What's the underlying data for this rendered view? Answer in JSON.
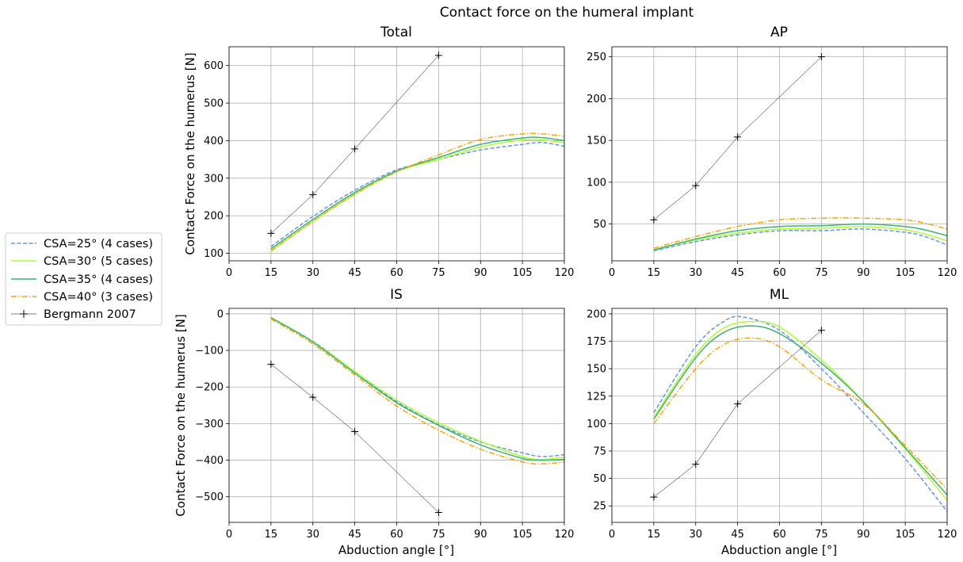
{
  "figure": {
    "suptitle": "Contact force on the humeral implant"
  },
  "legend": {
    "placement": "center-left",
    "entries": [
      {
        "label": "CSA=25° (4 cases)",
        "color": "#6495ED",
        "style": "dashed"
      },
      {
        "label": "CSA=30° (5 cases)",
        "color": "#ADFF2F",
        "style": "solid"
      },
      {
        "label": "CSA=35° (4 cases)",
        "color": "#3CB371",
        "style": "solid"
      },
      {
        "label": "CSA=40° (3 cases)",
        "color": "#FFA500",
        "style": "dashdot"
      },
      {
        "label": "Bergmann 2007",
        "color": "#000000",
        "style": "thin-plus-marker"
      }
    ]
  },
  "chart_data": [
    {
      "type": "line",
      "title": "Total",
      "xlabel": "",
      "ylabel": "Contact Force on the humerus [N]",
      "xlim": [
        0,
        120
      ],
      "ylim": [
        80,
        650
      ],
      "xticks": [
        0,
        15,
        30,
        45,
        60,
        75,
        90,
        105,
        120
      ],
      "yticks": [
        100,
        200,
        300,
        400,
        500,
        600
      ],
      "grid": true,
      "series": [
        {
          "name": "CSA=25° (4 cases)",
          "color": "#6495ED",
          "style": "dashed",
          "x": [
            15,
            30,
            45,
            60,
            75,
            90,
            105,
            112,
            120
          ],
          "y": [
            118,
            198,
            268,
            322,
            350,
            375,
            390,
            395,
            385
          ]
        },
        {
          "name": "CSA=30° (5 cases)",
          "color": "#ADFF2F",
          "style": "solid",
          "x": [
            15,
            30,
            45,
            60,
            75,
            90,
            105,
            112,
            120
          ],
          "y": [
            108,
            185,
            258,
            318,
            350,
            383,
            402,
            402,
            394
          ]
        },
        {
          "name": "CSA=35° (4 cases)",
          "color": "#3CB371",
          "style": "solid",
          "x": [
            15,
            30,
            45,
            60,
            75,
            90,
            105,
            112,
            120
          ],
          "y": [
            112,
            190,
            262,
            319,
            355,
            390,
            407,
            408,
            400
          ]
        },
        {
          "name": "CSA=40° (3 cases)",
          "color": "#FFA500",
          "style": "dashdot",
          "x": [
            15,
            30,
            45,
            60,
            75,
            90,
            105,
            112,
            120
          ],
          "y": [
            106,
            185,
            257,
            317,
            362,
            403,
            418,
            418,
            412
          ]
        },
        {
          "name": "Bergmann 2007",
          "color": "#000000",
          "style": "thin-plus-marker",
          "x": [
            15,
            30,
            45,
            75
          ],
          "y": [
            153,
            256,
            378,
            627
          ]
        }
      ]
    },
    {
      "type": "line",
      "title": "AP",
      "xlabel": "",
      "ylabel": "",
      "xlim": [
        0,
        120
      ],
      "ylim": [
        6,
        262
      ],
      "xticks": [
        0,
        15,
        30,
        45,
        60,
        75,
        90,
        105,
        120
      ],
      "yticks": [
        50,
        100,
        150,
        200,
        250
      ],
      "grid": true,
      "series": [
        {
          "name": "CSA=25° (4 cases)",
          "color": "#6495ED",
          "style": "dashed",
          "x": [
            15,
            30,
            45,
            60,
            75,
            90,
            105,
            112,
            120
          ],
          "y": [
            18,
            29,
            37,
            42,
            42,
            44,
            40,
            35,
            25
          ]
        },
        {
          "name": "CSA=30° (5 cases)",
          "color": "#ADFF2F",
          "style": "solid",
          "x": [
            15,
            30,
            45,
            60,
            75,
            90,
            105,
            112,
            120
          ],
          "y": [
            19,
            31,
            39,
            44,
            45,
            47,
            43,
            38,
            30
          ]
        },
        {
          "name": "CSA=35° (4 cases)",
          "color": "#3CB371",
          "style": "solid",
          "x": [
            15,
            30,
            45,
            60,
            75,
            90,
            105,
            112,
            120
          ],
          "y": [
            19,
            32,
            42,
            47,
            48,
            50,
            47,
            43,
            36
          ]
        },
        {
          "name": "CSA=40° (3 cases)",
          "color": "#FFA500",
          "style": "dashdot",
          "x": [
            15,
            30,
            45,
            60,
            75,
            90,
            105,
            112,
            120
          ],
          "y": [
            21,
            35,
            47,
            55,
            57,
            57,
            55,
            51,
            44
          ]
        },
        {
          "name": "Bergmann 2007",
          "color": "#000000",
          "style": "thin-plus-marker",
          "x": [
            15,
            30,
            45,
            75
          ],
          "y": [
            55,
            96,
            154,
            250
          ]
        }
      ]
    },
    {
      "type": "line",
      "title": "IS",
      "xlabel": "Abduction angle [°]",
      "ylabel": "Contact Force on the humerus [N]",
      "xlim": [
        0,
        120
      ],
      "ylim": [
        -570,
        15
      ],
      "xticks": [
        0,
        15,
        30,
        45,
        60,
        75,
        90,
        105,
        120
      ],
      "yticks": [
        0,
        -100,
        -200,
        -300,
        -400,
        -500
      ],
      "grid": true,
      "series": [
        {
          "name": "CSA=25° (4 cases)",
          "color": "#6495ED",
          "style": "dashed",
          "x": [
            15,
            30,
            45,
            60,
            75,
            90,
            105,
            112,
            120
          ],
          "y": [
            -10,
            -75,
            -158,
            -240,
            -303,
            -350,
            -380,
            -390,
            -385
          ]
        },
        {
          "name": "CSA=30° (5 cases)",
          "color": "#ADFF2F",
          "style": "solid",
          "x": [
            15,
            30,
            45,
            60,
            75,
            90,
            105,
            112,
            120
          ],
          "y": [
            -10,
            -76,
            -158,
            -236,
            -298,
            -348,
            -390,
            -398,
            -392
          ]
        },
        {
          "name": "CSA=35° (4 cases)",
          "color": "#3CB371",
          "style": "solid",
          "x": [
            15,
            30,
            45,
            60,
            75,
            90,
            105,
            112,
            120
          ],
          "y": [
            -11,
            -77,
            -162,
            -243,
            -305,
            -358,
            -395,
            -400,
            -398
          ]
        },
        {
          "name": "CSA=40° (3 cases)",
          "color": "#FFA500",
          "style": "dashdot",
          "x": [
            15,
            30,
            45,
            60,
            75,
            90,
            105,
            112,
            120
          ],
          "y": [
            -14,
            -82,
            -167,
            -252,
            -318,
            -370,
            -405,
            -410,
            -405
          ]
        },
        {
          "name": "Bergmann 2007",
          "color": "#000000",
          "style": "thin-plus-marker",
          "x": [
            15,
            30,
            45,
            75
          ],
          "y": [
            -138,
            -228,
            -322,
            -543
          ]
        }
      ]
    },
    {
      "type": "line",
      "title": "ML",
      "xlabel": "Abduction angle [°]",
      "ylabel": "",
      "xlim": [
        0,
        120
      ],
      "ylim": [
        10,
        205
      ],
      "xticks": [
        0,
        15,
        30,
        45,
        60,
        75,
        90,
        105,
        120
      ],
      "yticks": [
        25,
        50,
        75,
        100,
        125,
        150,
        175,
        200
      ],
      "grid": true,
      "series": [
        {
          "name": "CSA=25° (4 cases)",
          "color": "#6495ED",
          "style": "dashed",
          "x": [
            15,
            30,
            40,
            47,
            60,
            75,
            90,
            105,
            120
          ],
          "y": [
            110,
            170,
            193,
            197,
            185,
            150,
            110,
            68,
            20
          ]
        },
        {
          "name": "CSA=30° (5 cases)",
          "color": "#ADFF2F",
          "style": "solid",
          "x": [
            15,
            30,
            40,
            50,
            60,
            75,
            90,
            105,
            120
          ],
          "y": [
            106,
            163,
            187,
            193,
            188,
            158,
            120,
            77,
            30
          ]
        },
        {
          "name": "CSA=35° (4 cases)",
          "color": "#3CB371",
          "style": "solid",
          "x": [
            15,
            30,
            40,
            50,
            60,
            75,
            90,
            105,
            120
          ],
          "y": [
            104,
            160,
            183,
            189,
            182,
            155,
            120,
            78,
            35
          ]
        },
        {
          "name": "CSA=40° (3 cases)",
          "color": "#FFA500",
          "style": "dashdot",
          "x": [
            15,
            30,
            40,
            50,
            60,
            75,
            90,
            105,
            120
          ],
          "y": [
            100,
            150,
            172,
            178,
            170,
            140,
            118,
            80,
            40
          ]
        },
        {
          "name": "Bergmann 2007",
          "color": "#000000",
          "style": "thin-plus-marker",
          "x": [
            15,
            30,
            45,
            75
          ],
          "y": [
            33,
            63,
            118,
            185
          ]
        }
      ]
    }
  ]
}
